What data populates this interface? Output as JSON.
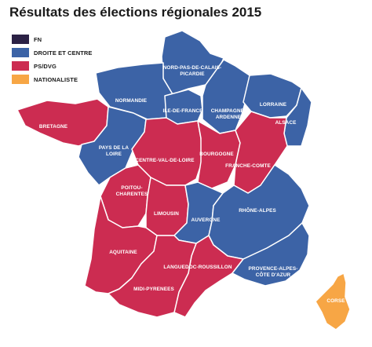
{
  "title": "Résultats des élections régionales 2015",
  "legend": [
    {
      "label": "FN",
      "color": "#2b2145"
    },
    {
      "label": "DROITE ET CENTRE",
      "color": "#3c63a6"
    },
    {
      "label": "PS/DVG",
      "color": "#cc2c51"
    },
    {
      "label": "NATIONALISTE",
      "color": "#f7a645"
    }
  ],
  "regions": [
    {
      "key": "nord",
      "lines": [
        "NORD-PAS-DE-CALAIS-",
        "PICARDIE"
      ],
      "result": "DROITE ET CENTRE"
    },
    {
      "key": "normandie",
      "lines": [
        "NORMANDIE"
      ],
      "result": "DROITE ET CENTRE"
    },
    {
      "key": "idf",
      "lines": [
        "ILE-DE-FRANCE"
      ],
      "result": "DROITE ET CENTRE"
    },
    {
      "key": "champagne",
      "lines": [
        "CHAMPAGNE-",
        "ARDENNE"
      ],
      "result": "DROITE ET CENTRE"
    },
    {
      "key": "lorraine",
      "lines": [
        "LORRAINE"
      ],
      "result": "DROITE ET CENTRE"
    },
    {
      "key": "alsace",
      "lines": [
        "ALSACE"
      ],
      "result": "DROITE ET CENTRE"
    },
    {
      "key": "bretagne",
      "lines": [
        "BRETAGNE"
      ],
      "result": "PS/DVG"
    },
    {
      "key": "pdl",
      "lines": [
        "PAYS DE LA",
        "LOIRE"
      ],
      "result": "DROITE ET CENTRE"
    },
    {
      "key": "cvl",
      "lines": [
        "CENTRE-VAL-DE-LOIRE"
      ],
      "result": "PS/DVG"
    },
    {
      "key": "bourgogne",
      "lines": [
        "BOURGOGNE"
      ],
      "result": "PS/DVG"
    },
    {
      "key": "franche",
      "lines": [
        "FRANCHE-COMTE"
      ],
      "result": "PS/DVG"
    },
    {
      "key": "poitou",
      "lines": [
        "POITOU-",
        "CHARENTES"
      ],
      "result": "PS/DVG"
    },
    {
      "key": "limousin",
      "lines": [
        "LIMOUSIN"
      ],
      "result": "PS/DVG"
    },
    {
      "key": "auvergne",
      "lines": [
        "AUVERGNE"
      ],
      "result": "DROITE ET CENTRE"
    },
    {
      "key": "rhone",
      "lines": [
        "RHÔNE-ALPES"
      ],
      "result": "DROITE ET CENTRE"
    },
    {
      "key": "aquitaine",
      "lines": [
        "AQUITAINE"
      ],
      "result": "PS/DVG"
    },
    {
      "key": "lr",
      "lines": [
        "LANGUEDOC-ROUSSILLON"
      ],
      "result": "PS/DVG"
    },
    {
      "key": "paca",
      "lines": [
        "PROVENCE-ALPES-",
        "CÔTE D'AZUR"
      ],
      "result": "DROITE ET CENTRE"
    },
    {
      "key": "mp",
      "lines": [
        "MIDI-PYRENEES"
      ],
      "result": "PS/DVG"
    },
    {
      "key": "corse",
      "lines": [
        "CORSE"
      ],
      "result": "NATIONALISTE"
    }
  ]
}
